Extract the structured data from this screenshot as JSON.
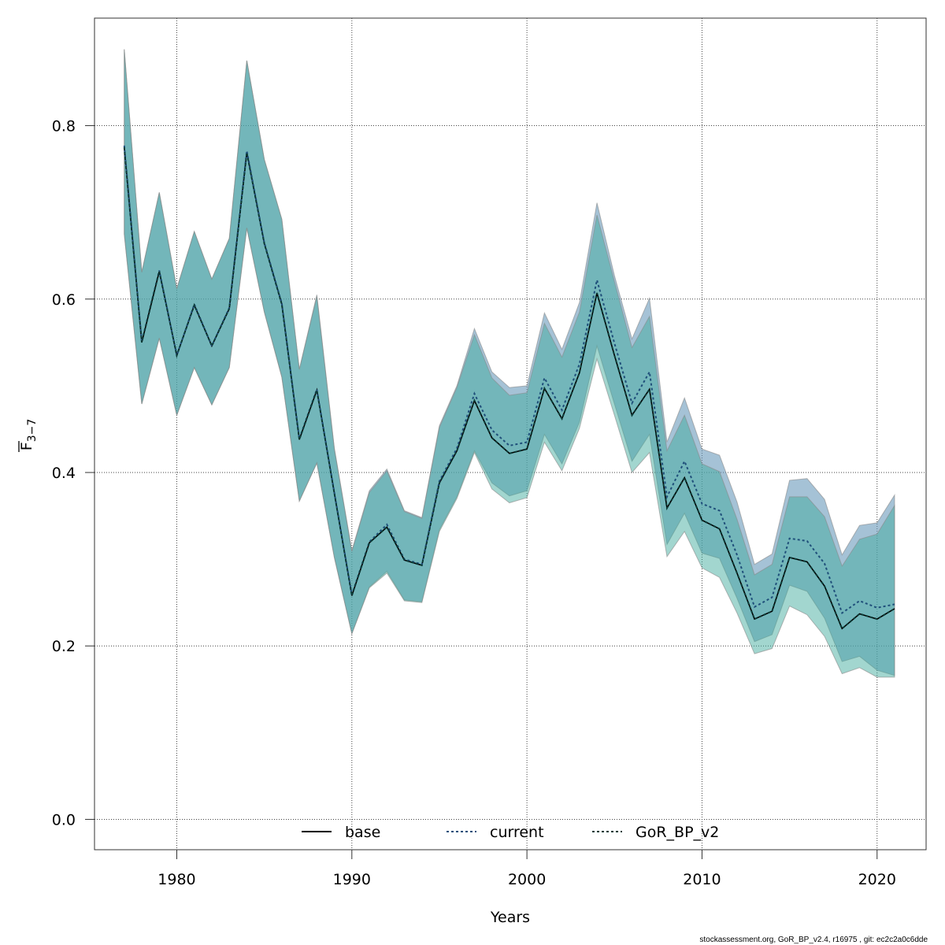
{
  "chart_data": {
    "type": "line",
    "title": "",
    "xlabel": "Years",
    "ylabel": "F3-7",
    "ylabel_main": "F",
    "ylabel_sub": "3−7",
    "xlim": [
      1975.3,
      2022.8
    ],
    "ylim": [
      -0.035,
      0.924
    ],
    "grid": true,
    "legend_position": "bottom-center",
    "x_ticks": [
      1980,
      1990,
      2000,
      2010,
      2020
    ],
    "x_tick_labels": [
      "1980",
      "1990",
      "2000",
      "2010",
      "2020"
    ],
    "y_ticks": [
      0,
      0.2,
      0.4,
      0.6,
      0.8
    ],
    "y_tick_labels": [
      "0.0",
      "0.2",
      "0.4",
      "0.6",
      "0.8"
    ],
    "x": [
      1977,
      1978,
      1979,
      1980,
      1981,
      1982,
      1983,
      1984,
      1985,
      1986,
      1987,
      1988,
      1989,
      1990,
      1991,
      1992,
      1993,
      1994,
      1995,
      1996,
      1997,
      1998,
      1999,
      2000,
      2001,
      2002,
      2003,
      2004,
      2005,
      2006,
      2007,
      2008,
      2009,
      2010,
      2011,
      2012,
      2013,
      2014,
      2015,
      2016,
      2017,
      2018,
      2019,
      2020,
      2021
    ],
    "series": [
      {
        "name": "base",
        "color": "#000000",
        "style": "solid",
        "band_color": "#3caa9b",
        "values": [
          0.775,
          0.55,
          0.632,
          0.535,
          0.593,
          0.546,
          0.589,
          0.769,
          0.664,
          0.594,
          0.438,
          0.495,
          0.376,
          0.258,
          0.319,
          0.337,
          0.299,
          0.293,
          0.388,
          0.425,
          0.483,
          0.44,
          0.422,
          0.427,
          0.497,
          0.462,
          0.515,
          0.607,
          0.535,
          0.466,
          0.496,
          0.359,
          0.394,
          0.345,
          0.335,
          0.284,
          0.231,
          0.24,
          0.302,
          0.297,
          0.269,
          0.22,
          0.237,
          0.231,
          0.243
        ],
        "upper": [
          0.888,
          0.631,
          0.723,
          0.612,
          0.678,
          0.623,
          0.67,
          0.875,
          0.761,
          0.692,
          0.519,
          0.603,
          0.427,
          0.309,
          0.377,
          0.402,
          0.355,
          0.347,
          0.452,
          0.498,
          0.559,
          0.509,
          0.489,
          0.492,
          0.572,
          0.533,
          0.585,
          0.697,
          0.62,
          0.544,
          0.58,
          0.425,
          0.466,
          0.41,
          0.401,
          0.346,
          0.282,
          0.294,
          0.372,
          0.372,
          0.349,
          0.292,
          0.323,
          0.329,
          0.362
        ],
        "lower": [
          0.675,
          0.479,
          0.555,
          0.466,
          0.521,
          0.478,
          0.521,
          0.682,
          0.585,
          0.51,
          0.367,
          0.411,
          0.302,
          0.214,
          0.267,
          0.284,
          0.252,
          0.25,
          0.332,
          0.37,
          0.423,
          0.381,
          0.365,
          0.371,
          0.435,
          0.402,
          0.451,
          0.531,
          0.466,
          0.4,
          0.423,
          0.303,
          0.332,
          0.29,
          0.279,
          0.238,
          0.191,
          0.197,
          0.246,
          0.236,
          0.211,
          0.168,
          0.175,
          0.164,
          0.164
        ]
      },
      {
        "name": "current",
        "color": "#1f4f7a",
        "style": "dotted",
        "band_color": "#6496b9",
        "values": [
          0.777,
          0.551,
          0.633,
          0.535,
          0.594,
          0.546,
          0.59,
          0.771,
          0.665,
          0.595,
          0.439,
          0.496,
          0.377,
          0.259,
          0.32,
          0.34,
          0.3,
          0.294,
          0.39,
          0.428,
          0.491,
          0.449,
          0.431,
          0.435,
          0.509,
          0.472,
          0.525,
          0.622,
          0.549,
          0.48,
          0.516,
          0.372,
          0.413,
          0.364,
          0.356,
          0.305,
          0.245,
          0.256,
          0.324,
          0.321,
          0.295,
          0.238,
          0.252,
          0.244,
          0.248
        ],
        "upper": [
          0.888,
          0.631,
          0.723,
          0.612,
          0.678,
          0.623,
          0.67,
          0.875,
          0.761,
          0.692,
          0.519,
          0.605,
          0.428,
          0.31,
          0.379,
          0.404,
          0.356,
          0.348,
          0.454,
          0.5,
          0.566,
          0.516,
          0.498,
          0.5,
          0.584,
          0.542,
          0.596,
          0.711,
          0.627,
          0.554,
          0.601,
          0.435,
          0.486,
          0.427,
          0.42,
          0.366,
          0.294,
          0.306,
          0.391,
          0.393,
          0.369,
          0.305,
          0.339,
          0.342,
          0.374
        ],
        "lower": [
          0.675,
          0.479,
          0.555,
          0.466,
          0.521,
          0.478,
          0.521,
          0.682,
          0.585,
          0.51,
          0.367,
          0.411,
          0.302,
          0.214,
          0.268,
          0.286,
          0.253,
          0.251,
          0.334,
          0.372,
          0.425,
          0.388,
          0.373,
          0.379,
          0.444,
          0.41,
          0.458,
          0.546,
          0.479,
          0.413,
          0.444,
          0.317,
          0.353,
          0.307,
          0.301,
          0.255,
          0.205,
          0.213,
          0.27,
          0.263,
          0.232,
          0.182,
          0.188,
          0.172,
          0.166
        ]
      },
      {
        "name": "GoR_BP_v2",
        "color": "#0b3b36",
        "style": "dotted",
        "values": [
          0.775,
          0.55,
          0.632,
          0.535,
          0.593,
          0.546,
          0.589,
          0.769,
          0.664,
          0.594,
          0.438,
          0.495,
          0.376,
          0.258,
          0.319,
          0.337,
          0.299,
          0.293,
          0.388,
          0.425,
          0.483,
          0.44,
          0.422,
          0.427,
          0.497,
          0.462,
          0.515,
          0.607,
          0.535,
          0.466,
          0.496,
          0.359,
          0.394,
          0.345,
          0.335,
          0.284,
          0.231,
          0.24,
          0.302,
          0.297,
          0.269,
          0.22,
          0.237,
          0.231,
          0.243
        ]
      }
    ]
  },
  "footer": "stockassessment.org, GoR_BP_v2.4, r16975 , git: ec2c2a0c6dde"
}
